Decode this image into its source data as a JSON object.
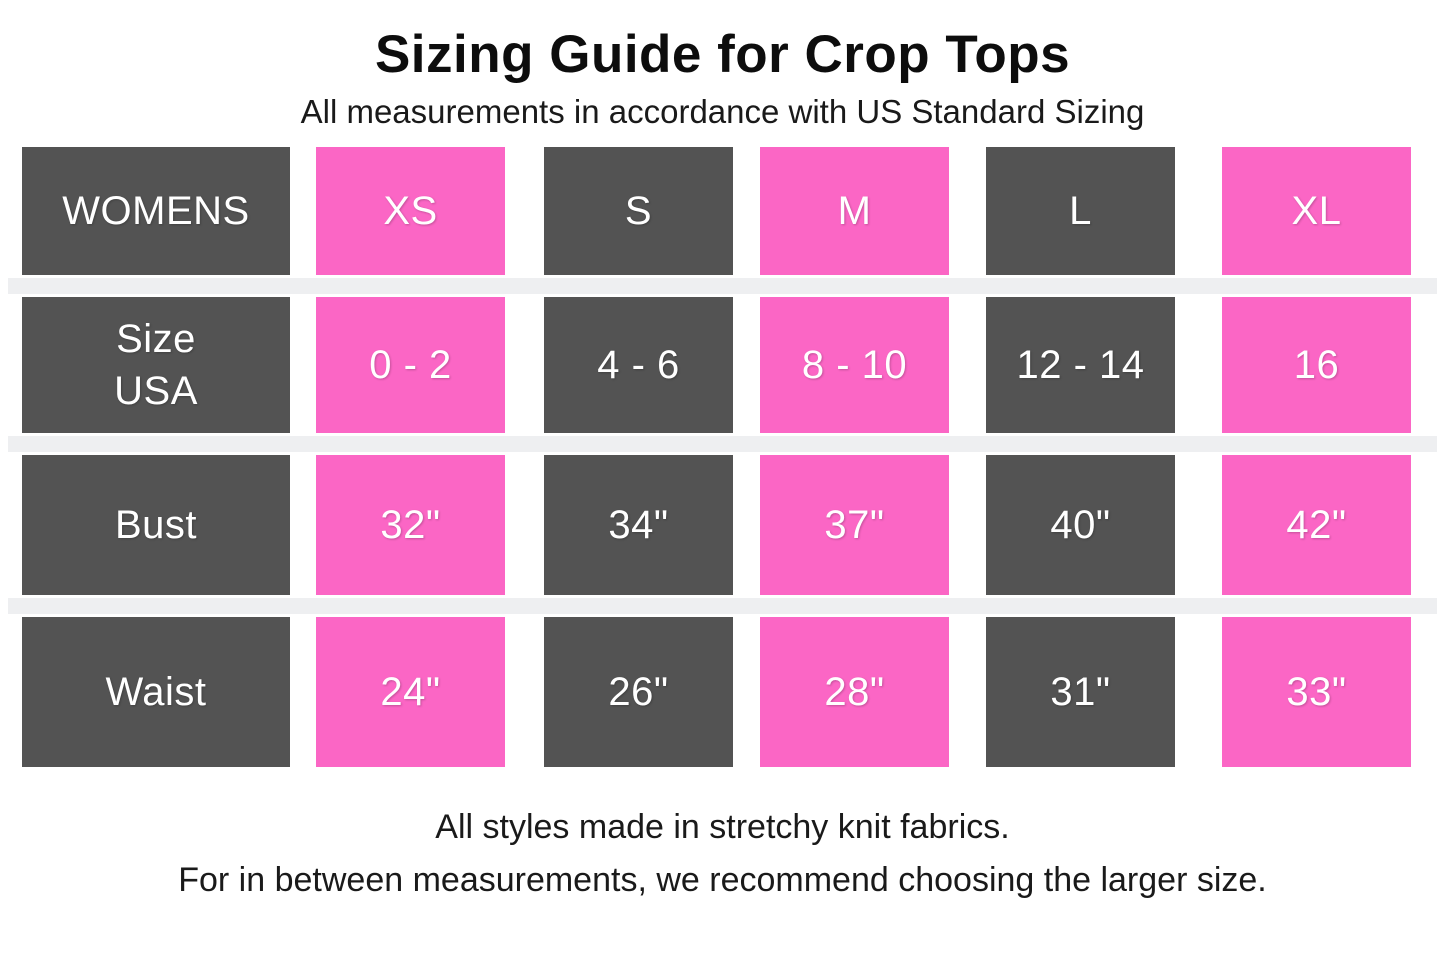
{
  "page": {
    "title": "Sizing Guide for Crop Tops",
    "subtitle": "All measurements in accordance with US Standard Sizing",
    "footer": {
      "line1": "All styles made in stretchy knit fabrics.",
      "line2": "For in between measurements, we recommend choosing the larger size."
    }
  },
  "colors": {
    "background": "#FFFFFF",
    "dark_cell": "#535353",
    "pink_cell": "#FB66C5",
    "separator_band": "#EEEFF1",
    "cell_text": "#FFFFFF",
    "text": "#1A1A1A"
  },
  "table": {
    "header": {
      "cells": [
        "WOMENS",
        "XS",
        "S",
        "M",
        "L",
        "XL"
      ]
    },
    "rows": [
      {
        "label": "Size\nUSA",
        "values": [
          "0 - 2",
          "4 - 6",
          "8 - 10",
          "12 - 14",
          "16"
        ]
      },
      {
        "label": "Bust",
        "values": [
          "32\"",
          "34\"",
          "37\"",
          "40\"",
          "42\""
        ]
      },
      {
        "label": "Waist",
        "values": [
          "24\"",
          "26\"",
          "28\"",
          "31\"",
          "33\""
        ]
      }
    ]
  },
  "chart_data": {
    "type": "table",
    "title": "Sizing Guide for Crop Tops",
    "subtitle": "All measurements in accordance with US Standard Sizing",
    "columns": [
      "WOMENS",
      "XS",
      "S",
      "M",
      "L",
      "XL"
    ],
    "rows": [
      {
        "label": "Size USA",
        "values": [
          "0 - 2",
          "4 - 6",
          "8 - 10",
          "12 - 14",
          "16"
        ]
      },
      {
        "label": "Bust (inches)",
        "values": [
          32,
          34,
          37,
          40,
          42
        ]
      },
      {
        "label": "Waist (inches)",
        "values": [
          24,
          26,
          28,
          31,
          33
        ]
      }
    ],
    "notes": [
      "All styles made in stretchy knit fabrics.",
      "For in between measurements, we recommend choosing the larger size."
    ]
  }
}
